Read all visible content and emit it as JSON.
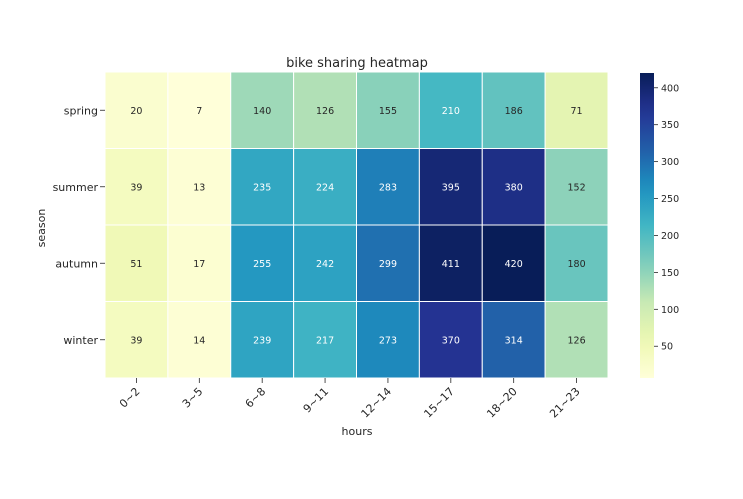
{
  "chart_data": {
    "type": "heatmap",
    "title": "bike sharing heatmap",
    "xlabel": "hours",
    "ylabel": "season",
    "x_categories": [
      "0~2",
      "3~5",
      "6~8",
      "9~11",
      "12~14",
      "15~17",
      "18~20",
      "21~23"
    ],
    "y_categories": [
      "spring",
      "summer",
      "autumn",
      "winter"
    ],
    "values": [
      [
        20,
        7,
        140,
        126,
        155,
        210,
        186,
        71
      ],
      [
        39,
        13,
        235,
        224,
        283,
        395,
        380,
        152
      ],
      [
        51,
        17,
        255,
        242,
        299,
        411,
        420,
        180
      ],
      [
        39,
        14,
        239,
        217,
        273,
        370,
        314,
        126
      ]
    ],
    "colormap": "YlGnBu",
    "colorbar": {
      "min": 7,
      "max": 420,
      "ticks": [
        50,
        100,
        150,
        200,
        250,
        300,
        350,
        400
      ]
    },
    "annotations": true,
    "grid": false
  }
}
